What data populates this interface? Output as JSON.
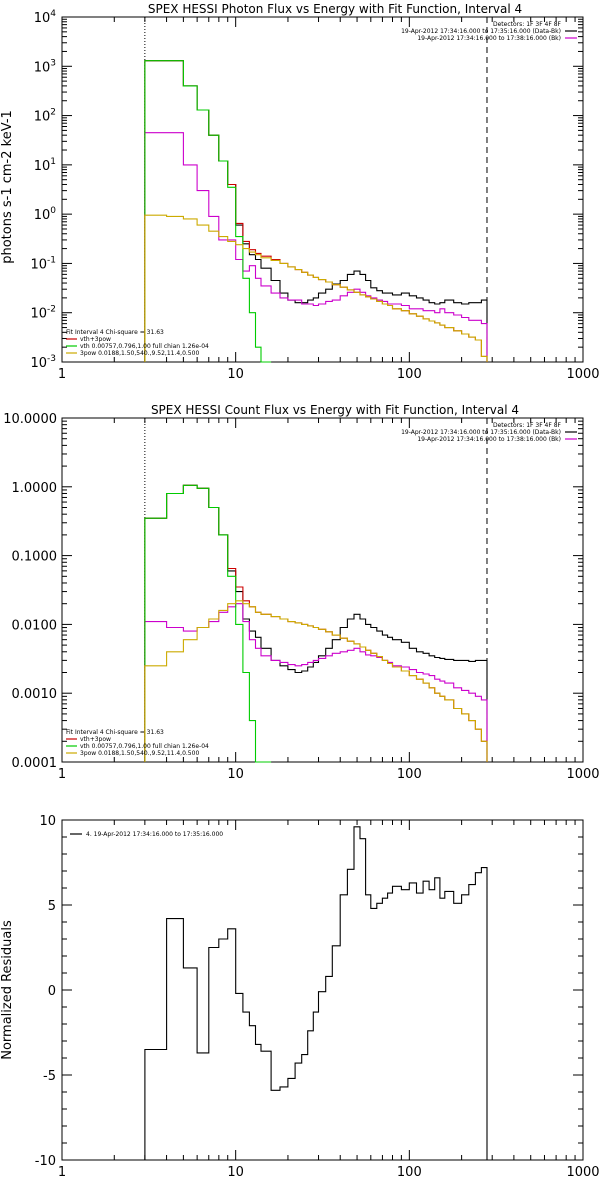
{
  "chart_data": [
    {
      "type": "line",
      "title": "SPEX HESSI Photon Flux vs Energy with Fit Function, Interval 4",
      "ylabel": "photons s-1 cm-2 keV-1",
      "xscale": "log",
      "yscale": "log",
      "xlim": [
        1,
        1000
      ],
      "ylim": [
        0.001,
        10000
      ],
      "xticks": [
        "1",
        "10",
        "100",
        "1000"
      ],
      "yticks": [
        {
          "base": "10",
          "exp": "-3"
        },
        {
          "base": "10",
          "exp": "-2"
        },
        {
          "base": "10",
          "exp": "-1"
        },
        {
          "base": "10",
          "exp": "0"
        },
        {
          "base": "10",
          "exp": "1"
        },
        {
          "base": "10",
          "exp": "2"
        },
        {
          "base": "10",
          "exp": "3"
        },
        {
          "base": "10",
          "exp": "4"
        }
      ],
      "vlines": [
        {
          "x": 3,
          "style": "dotted"
        },
        {
          "x": 280,
          "style": "dashed"
        }
      ],
      "legend_tr": [
        {
          "text": "Detectors: 1F 3F 4F 8F",
          "color": "#000000"
        },
        {
          "text": "19-Apr-2012 17:34:16.000 to 17:35:16.000 (Data-Bk)",
          "color": "#000000"
        },
        {
          "text": "19-Apr-2012 17:34:16.000 to 17:38:16.000 (Bk)",
          "color": "#cc00cc"
        }
      ],
      "legend_bl": [
        {
          "text": "Fit Interval 4   Chi-square = 31.63",
          "color": "#000000"
        },
        {
          "text": "vth+3pow",
          "color": "#cc0000"
        },
        {
          "text": "vth 0.00757,0.796,1.00  full chian 1.26e-04",
          "color": "#00cc00"
        },
        {
          "text": "3pow 0.0188,1.50,540.,9.52,11.4,0.500",
          "color": "#ccaa00"
        }
      ],
      "edges": [
        3,
        4,
        5,
        6,
        7,
        8,
        9,
        10,
        11,
        12,
        13,
        14,
        16,
        18,
        20,
        22,
        24,
        26,
        28,
        30,
        33,
        36,
        40,
        44,
        48,
        52,
        56,
        60,
        65,
        70,
        75,
        80,
        90,
        100,
        110,
        120,
        130,
        140,
        150,
        160,
        180,
        200,
        220,
        240,
        260,
        280
      ],
      "series": [
        {
          "name": "Data-Bk",
          "color": "#000000",
          "values": [
            1300,
            1300,
            400,
            130,
            40,
            12,
            4,
            0.6,
            0.25,
            0.15,
            0.12,
            0.08,
            0.045,
            0.025,
            0.018,
            0.016,
            0.016,
            0.018,
            0.02,
            0.025,
            0.03,
            0.038,
            0.045,
            0.06,
            0.07,
            0.06,
            0.045,
            0.032,
            0.028,
            0.025,
            0.025,
            0.023,
            0.025,
            0.022,
            0.02,
            0.018,
            0.016,
            0.015,
            0.016,
            0.018,
            0.016,
            0.015,
            0.016,
            0.016,
            0.018
          ]
        },
        {
          "name": "Bk",
          "color": "#cc00cc",
          "values": [
            45,
            45,
            10,
            3,
            0.9,
            0.3,
            0.3,
            0.12,
            0.07,
            0.09,
            0.05,
            0.035,
            0.025,
            0.02,
            0.018,
            0.018,
            0.015,
            0.015,
            0.014,
            0.015,
            0.017,
            0.018,
            0.022,
            0.026,
            0.03,
            0.026,
            0.022,
            0.02,
            0.018,
            0.017,
            0.015,
            0.015,
            0.014,
            0.012,
            0.012,
            0.011,
            0.011,
            0.01,
            0.012,
            0.01,
            0.009,
            0.008,
            0.007,
            0.007,
            0.006
          ]
        },
        {
          "name": "vth+3pow",
          "color": "#cc0000",
          "values": [
            1300,
            1300,
            400,
            130,
            40,
            12,
            4,
            0.65,
            0.28,
            0.19,
            0.16,
            0.14,
            0.12,
            0.1,
            0.085,
            0.075,
            0.066,
            0.058,
            0.052,
            0.047,
            0.042,
            0.037,
            0.033,
            0.029,
            0.026,
            0.023,
            0.021,
            0.019,
            0.017,
            0.015,
            0.014,
            0.012,
            0.011,
            0.0095,
            0.0085,
            0.0075,
            0.0068,
            0.0062,
            0.0056,
            0.005,
            0.0043,
            0.0037,
            0.0032,
            0.0028,
            0.0013
          ]
        },
        {
          "name": "vth",
          "color": "#00cc00",
          "values": [
            1300,
            1300,
            400,
            130,
            40,
            12,
            3.5,
            0.35,
            0.05,
            0.01,
            0.002,
            0.0005
          ]
        },
        {
          "name": "3pow",
          "color": "#ccaa00",
          "values": [
            0.95,
            0.9,
            0.8,
            0.6,
            0.45,
            0.35,
            0.28,
            0.24,
            0.2,
            0.17,
            0.15,
            0.13,
            0.115,
            0.1,
            0.085,
            0.075,
            0.066,
            0.058,
            0.052,
            0.047,
            0.042,
            0.037,
            0.033,
            0.029,
            0.026,
            0.023,
            0.021,
            0.019,
            0.017,
            0.015,
            0.014,
            0.012,
            0.011,
            0.0095,
            0.0085,
            0.0075,
            0.0068,
            0.0062,
            0.0056,
            0.005,
            0.0043,
            0.0037,
            0.0032,
            0.0028,
            0.0013
          ]
        }
      ]
    },
    {
      "type": "line",
      "title": "SPEX HESSI Count Flux vs Energy with Fit Function, Interval 4",
      "xscale": "log",
      "yscale": "log",
      "xlim": [
        1,
        1000
      ],
      "ylim": [
        0.0001,
        10
      ],
      "xticks": [
        "1",
        "10",
        "100",
        "1000"
      ],
      "yticks": [
        "0.0001",
        "0.0010",
        "0.0100",
        "0.1000",
        "1.0000",
        "10.0000"
      ],
      "vlines": [
        {
          "x": 3,
          "style": "dotted"
        },
        {
          "x": 280,
          "style": "dashed"
        }
      ],
      "legend_tr": [
        {
          "text": "Detectors: 1F 3F 4F 8F",
          "color": "#000000"
        },
        {
          "text": "19-Apr-2012 17:34:16.000 to 17:35:16.000 (Data-Bk)",
          "color": "#000000"
        },
        {
          "text": "19-Apr-2012 17:34:16.000 to 17:38:16.000 (Bk)",
          "color": "#cc00cc"
        }
      ],
      "legend_bl": [
        {
          "text": "Fit Interval 4   Chi-square = 31.63",
          "color": "#000000"
        },
        {
          "text": "vth+3pow",
          "color": "#cc0000"
        },
        {
          "text": "vth 0.00757,0.796,1.00  full chian 1.26e-04",
          "color": "#00cc00"
        },
        {
          "text": "3pow 0.0188,1.50,540.,9.52,11.4,0.500",
          "color": "#ccaa00"
        }
      ],
      "edges": [
        3,
        4,
        5,
        6,
        7,
        8,
        9,
        10,
        11,
        12,
        13,
        14,
        16,
        18,
        20,
        22,
        24,
        26,
        28,
        30,
        33,
        36,
        40,
        44,
        48,
        52,
        56,
        60,
        65,
        70,
        75,
        80,
        90,
        100,
        110,
        120,
        130,
        140,
        150,
        160,
        180,
        200,
        220,
        240,
        260,
        280
      ],
      "series": [
        {
          "name": "Data-Bk",
          "color": "#000000",
          "values": [
            0.35,
            0.8,
            1.05,
            0.95,
            0.5,
            0.2,
            0.06,
            0.03,
            0.012,
            0.008,
            0.0065,
            0.0045,
            0.003,
            0.0025,
            0.0022,
            0.002,
            0.0021,
            0.0024,
            0.0028,
            0.0035,
            0.0045,
            0.006,
            0.009,
            0.012,
            0.014,
            0.012,
            0.01,
            0.009,
            0.008,
            0.007,
            0.0065,
            0.006,
            0.0055,
            0.0045,
            0.004,
            0.0038,
            0.0035,
            0.0033,
            0.0032,
            0.0031,
            0.003,
            0.003,
            0.0029,
            0.003,
            0.003
          ]
        },
        {
          "name": "Bk",
          "color": "#cc00cc",
          "values": [
            0.011,
            0.009,
            0.008,
            0.009,
            0.011,
            0.015,
            0.018,
            0.02,
            0.011,
            0.006,
            0.0045,
            0.0035,
            0.003,
            0.0028,
            0.0026,
            0.0025,
            0.0026,
            0.0028,
            0.003,
            0.0032,
            0.0035,
            0.0038,
            0.004,
            0.0042,
            0.0045,
            0.004,
            0.0036,
            0.0035,
            0.0033,
            0.003,
            0.0028,
            0.0025,
            0.0024,
            0.0022,
            0.002,
            0.0019,
            0.0018,
            0.0016,
            0.0015,
            0.0014,
            0.0012,
            0.0011,
            0.001,
            0.0009,
            0.0008
          ]
        },
        {
          "name": "vth+3pow",
          "color": "#cc0000",
          "values": [
            0.35,
            0.8,
            1.05,
            0.95,
            0.5,
            0.2,
            0.065,
            0.035,
            0.022,
            0.018,
            0.015,
            0.014,
            0.013,
            0.012,
            0.011,
            0.0105,
            0.01,
            0.0095,
            0.009,
            0.0085,
            0.0078,
            0.007,
            0.0063,
            0.0057,
            0.0052,
            0.0047,
            0.0042,
            0.0038,
            0.0034,
            0.003,
            0.0027,
            0.0024,
            0.0021,
            0.0018,
            0.0016,
            0.0014,
            0.0012,
            0.001,
            0.0009,
            0.0008,
            0.0006,
            0.0005,
            0.0004,
            0.0003,
            0.0002
          ]
        },
        {
          "name": "vth",
          "color": "#00cc00",
          "values": [
            0.35,
            0.8,
            1.05,
            0.95,
            0.5,
            0.2,
            0.05,
            0.01,
            0.002,
            0.0004,
            0.0001,
            8e-05
          ]
        },
        {
          "name": "3pow",
          "color": "#ccaa00",
          "values": [
            0.0025,
            0.004,
            0.006,
            0.009,
            0.012,
            0.016,
            0.02,
            0.022,
            0.02,
            0.018,
            0.015,
            0.014,
            0.013,
            0.012,
            0.011,
            0.0105,
            0.01,
            0.0095,
            0.009,
            0.0085,
            0.0078,
            0.007,
            0.0063,
            0.0057,
            0.0052,
            0.0047,
            0.0042,
            0.0038,
            0.0034,
            0.003,
            0.0027,
            0.0024,
            0.0021,
            0.0018,
            0.0016,
            0.0014,
            0.0012,
            0.001,
            0.0009,
            0.0008,
            0.0006,
            0.0005,
            0.0004,
            0.0003,
            0.0002
          ]
        }
      ]
    },
    {
      "type": "line",
      "title": "",
      "ylabel": "Normalized Residuals",
      "xscale": "log",
      "yscale": "linear",
      "xlim": [
        1,
        1000
      ],
      "ylim": [
        -10,
        10
      ],
      "xticks": [
        "1",
        "10",
        "100",
        "1000"
      ],
      "yticks": [
        "-10",
        "-5",
        "0",
        "5",
        "10"
      ],
      "legend_tl": [
        {
          "text": "4. 19-Apr-2012 17:34:16.000 to 17:35:16.000",
          "color": "#000000"
        }
      ],
      "edges": [
        3,
        4,
        5,
        6,
        7,
        8,
        9,
        10,
        11,
        12,
        13,
        14,
        16,
        18,
        20,
        22,
        24,
        26,
        28,
        30,
        33,
        36,
        40,
        44,
        48,
        52,
        56,
        60,
        65,
        70,
        75,
        80,
        90,
        100,
        110,
        120,
        130,
        140,
        150,
        160,
        180,
        200,
        220,
        240,
        260,
        280
      ],
      "series": [
        {
          "name": "",
          "color": "#000000",
          "values": [
            -3.5,
            4.2,
            1.3,
            -3.7,
            2.5,
            3.0,
            3.6,
            -0.2,
            -1.3,
            -2.1,
            -3.2,
            -3.6,
            -5.9,
            -5.7,
            -5.2,
            -4.3,
            -3.8,
            -2.4,
            -1.3,
            -0.1,
            0.8,
            2.6,
            5.6,
            7.1,
            9.6,
            8.9,
            5.6,
            4.8,
            5.1,
            5.4,
            5.7,
            6.1,
            5.9,
            6.3,
            5.7,
            6.4,
            5.9,
            6.6,
            5.4,
            5.8,
            5.1,
            5.6,
            6.2,
            6.9,
            7.2
          ]
        }
      ]
    }
  ]
}
